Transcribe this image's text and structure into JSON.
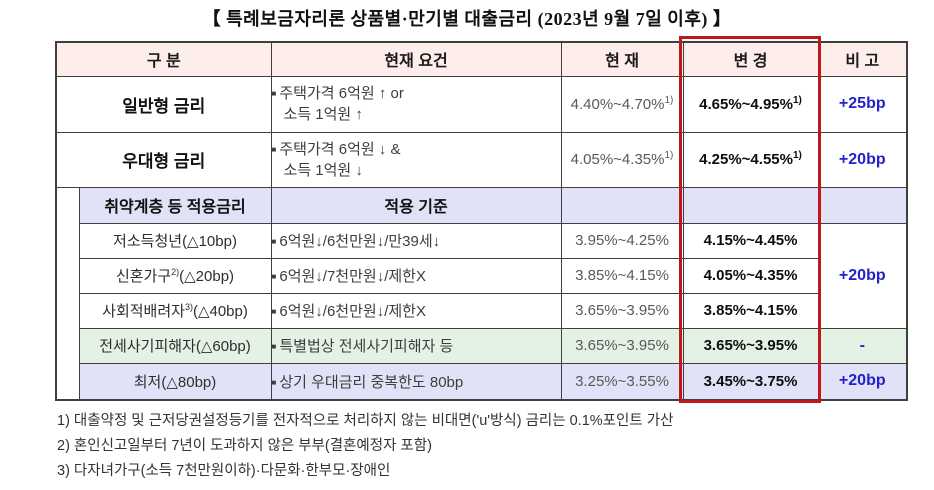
{
  "title": "【 특례보금자리론 상품별·만기별 대출금리 (2023년 9월 7일 이후) 】",
  "bullet": "■",
  "table": {
    "headers": {
      "category": "구 분",
      "requirement": "현재 요건",
      "current": "현 재",
      "changed": "변 경",
      "note": "비 고"
    },
    "rows": {
      "general": {
        "label": "일반형 금리",
        "req_line1": "주택가격 6억원 ↑ or",
        "req_line2": "소득 1억원 ↑",
        "current": "4.40%~4.70%",
        "current_sup": "1)",
        "changed": "4.65%~4.95%",
        "changed_sup": "1)",
        "note": "+25bp"
      },
      "preferential": {
        "label": "우대형 금리",
        "req_line1": "주택가격 6억원 ↓ &",
        "req_line2": "소득 1억원 ↓",
        "current": "4.05%~4.35%",
        "current_sup": "1)",
        "changed": "4.25%~4.55%",
        "changed_sup": "1)",
        "note": "+20bp"
      },
      "vulnerable_header": {
        "label": "취약계층 등 적용금리",
        "requirement": "적용 기준"
      },
      "low_income_youth": {
        "label": "저소득청년",
        "label_post": "(△10bp)",
        "requirement": "6억원↓/6천만원↓/만39세↓",
        "current": "3.95%~4.25%",
        "changed": "4.15%~4.45%"
      },
      "newlyweds": {
        "label": "신혼가구",
        "label_sup": "2)",
        "label_post": "(△20bp)",
        "requirement": "6억원↓/7천만원↓/제한X",
        "current": "3.85%~4.15%",
        "changed": "4.05%~4.35%"
      },
      "social_consideration": {
        "label": "사회적배려자",
        "label_sup": "3)",
        "label_post": "(△40bp)",
        "requirement": "6억원↓/6천만원↓/제한X",
        "current": "3.65%~3.95%",
        "changed": "3.85%~4.15%"
      },
      "subgroup_merged_note": "+20bp",
      "jeonse_fraud_victim": {
        "label": "전세사기피해자",
        "label_post": "(△60bp)",
        "requirement": "특별법상 전세사기피해자 등",
        "current": "3.65%~3.95%",
        "changed": "3.65%~3.95%",
        "note": "-"
      },
      "minimum": {
        "label": "최저",
        "label_post": "(△80bp)",
        "requirement": "상기 우대금리 중복한도 80bp",
        "current": "3.25%~3.55%",
        "changed": "3.45%~3.75%",
        "note": "+20bp"
      }
    }
  },
  "footnotes": [
    "1) 대출약정 및 근저당권설정등기를 전자적으로 처리하지 않는 비대면('u'방식) 금리는 0.1%포인트 가산",
    "2) 혼인신고일부터 7년이 도과하지 않은 부부(결혼예정자 포함)",
    "3) 다자녀가구(소득 7천만원이하)·다문화·한부모·장애인"
  ],
  "colors": {
    "header_bg": "#fdeeeb",
    "lavender_bg": "#e1e2f7",
    "green_bg": "#e4f2e5",
    "highlight_border": "#c01818",
    "note_text": "#2222cc"
  }
}
